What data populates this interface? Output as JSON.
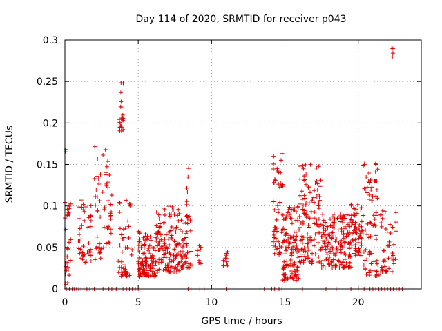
{
  "chart_data": {
    "type": "scatter",
    "title": "Day 114 of 2020, SRMTID for receiver p043",
    "xlabel": "GPS time / hours",
    "ylabel": "SRMTID / TECUs",
    "xlim": [
      0,
      24.3
    ],
    "ylim": [
      0,
      0.3
    ],
    "xticks": [
      0,
      5,
      10,
      15,
      20
    ],
    "xtick_labels": [
      "0",
      "5",
      "10",
      "15",
      "20"
    ],
    "yticks": [
      0,
      0.05,
      0.1,
      0.15,
      0.2,
      0.25,
      0.3
    ],
    "ytick_labels": [
      "0",
      "0.05",
      "0.1",
      "0.15",
      "0.2",
      "0.25",
      "0.3"
    ],
    "grid": true,
    "marker": "+",
    "color": "#e00000",
    "clusters": [
      {
        "x_range": [
          0.0,
          0.4
        ],
        "y_range": [
          0.005,
          0.105
        ],
        "n": 30
      },
      {
        "x_range": [
          0.9,
          1.8
        ],
        "y_range": [
          0.025,
          0.108
        ],
        "n": 45
      },
      {
        "x_range": [
          2.0,
          2.8
        ],
        "y_range": [
          0.035,
          0.175
        ],
        "n": 35
      },
      {
        "x_range": [
          2.8,
          3.2
        ],
        "y_range": [
          0.05,
          0.16
        ],
        "n": 25
      },
      {
        "x_range": [
          3.7,
          4.0
        ],
        "y_range": [
          0.19,
          0.25
        ],
        "n": 22
      },
      {
        "x_range": [
          3.6,
          4.6
        ],
        "y_range": [
          0.015,
          0.11
        ],
        "n": 45
      },
      {
        "x_range": [
          5.0,
          6.2
        ],
        "y_range": [
          0.015,
          0.07
        ],
        "n": 120
      },
      {
        "x_range": [
          6.2,
          7.8
        ],
        "y_range": [
          0.02,
          0.1
        ],
        "n": 130
      },
      {
        "x_range": [
          7.8,
          8.6
        ],
        "y_range": [
          0.025,
          0.09
        ],
        "n": 55
      },
      {
        "x_range": [
          8.3,
          8.5
        ],
        "y_range": [
          0.1,
          0.16
        ],
        "n": 6
      },
      {
        "x_range": [
          9.0,
          9.3
        ],
        "y_range": [
          0.03,
          0.055
        ],
        "n": 10
      },
      {
        "x_range": [
          10.8,
          11.1
        ],
        "y_range": [
          0.025,
          0.05
        ],
        "n": 12
      },
      {
        "x_range": [
          14.2,
          14.9
        ],
        "y_range": [
          0.04,
          0.165
        ],
        "n": 60
      },
      {
        "x_range": [
          14.8,
          16.0
        ],
        "y_range": [
          0.01,
          0.1
        ],
        "n": 120
      },
      {
        "x_range": [
          16.0,
          17.5
        ],
        "y_range": [
          0.03,
          0.15
        ],
        "n": 130
      },
      {
        "x_range": [
          17.5,
          19.5
        ],
        "y_range": [
          0.025,
          0.09
        ],
        "n": 160
      },
      {
        "x_range": [
          19.5,
          20.3
        ],
        "y_range": [
          0.04,
          0.105
        ],
        "n": 60
      },
      {
        "x_range": [
          20.3,
          21.4
        ],
        "y_range": [
          0.015,
          0.155
        ],
        "n": 80
      },
      {
        "x_range": [
          21.5,
          22.6
        ],
        "y_range": [
          0.02,
          0.095
        ],
        "n": 45
      },
      {
        "x_range": [
          22.25,
          22.45
        ],
        "y_range": [
          0.278,
          0.292
        ],
        "n": 4
      },
      {
        "x_range": [
          0.0,
          0.05
        ],
        "y_range": [
          0.165,
          0.17
        ],
        "n": 2
      }
    ],
    "zero_points_x": [
      0.1,
      0.3,
      0.5,
      0.65,
      0.8,
      0.95,
      1.1,
      1.3,
      1.5,
      1.7,
      1.9,
      2.0,
      2.6,
      2.8,
      3.0,
      3.2,
      3.5,
      3.9,
      4.0,
      4.2,
      4.4,
      4.6,
      4.8,
      5.0,
      8.4,
      8.6,
      9.2,
      9.5,
      11.0,
      13.3,
      13.6,
      14.1,
      14.3,
      14.6,
      14.8,
      16.2,
      17.8,
      18.5,
      19.5,
      20.0,
      20.4,
      20.6,
      20.8,
      21.0,
      21.2,
      21.4,
      21.6,
      21.8,
      22.0,
      22.2,
      22.4,
      22.6,
      22.8,
      23.0
    ]
  }
}
